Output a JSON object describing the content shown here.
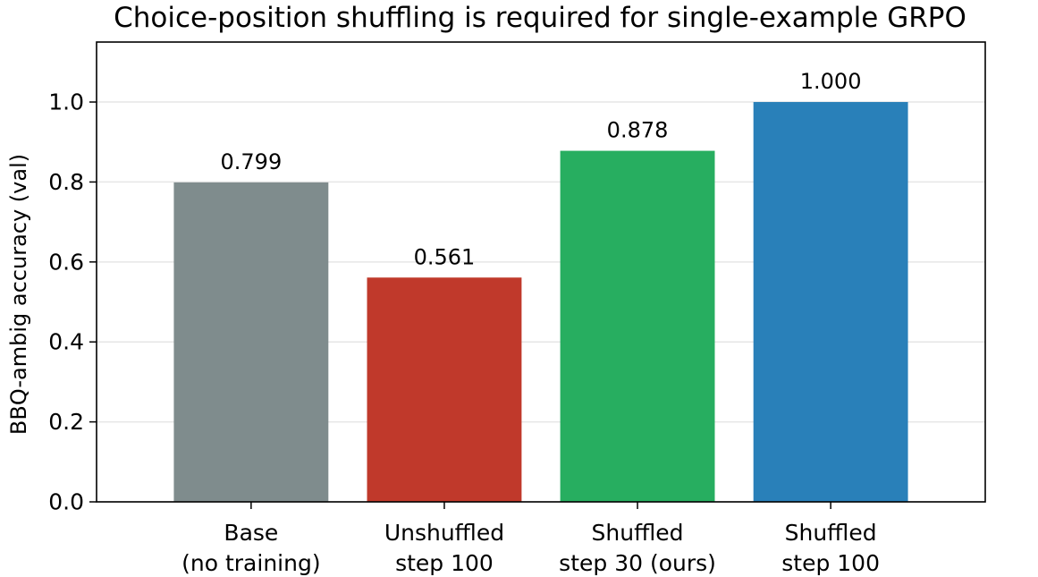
{
  "chart_data": {
    "type": "bar",
    "title": "Choice-position shuffling is required for single-example GRPO",
    "ylabel": "BBQ-ambig accuracy (val)",
    "xlabel": "",
    "ylim": [
      0,
      1.15
    ],
    "yticks": [
      0.0,
      0.2,
      0.4,
      0.6,
      0.8,
      1.0
    ],
    "ytick_labels": [
      "0.0",
      "0.2",
      "0.4",
      "0.6",
      "0.8",
      "1.0"
    ],
    "grid": "horizontal",
    "categories": [
      [
        "Base",
        "(no training)"
      ],
      [
        "Unshuffled",
        "step 100"
      ],
      [
        "Shuffled",
        "step 30 (ours)"
      ],
      [
        "Shuffled",
        "step 100"
      ]
    ],
    "values": [
      0.799,
      0.561,
      0.878,
      1.0
    ],
    "value_labels": [
      "0.799",
      "0.561",
      "0.878",
      "1.000"
    ],
    "colors": [
      "#7f8c8d",
      "#c0392b",
      "#27ae60",
      "#2980b9"
    ]
  }
}
